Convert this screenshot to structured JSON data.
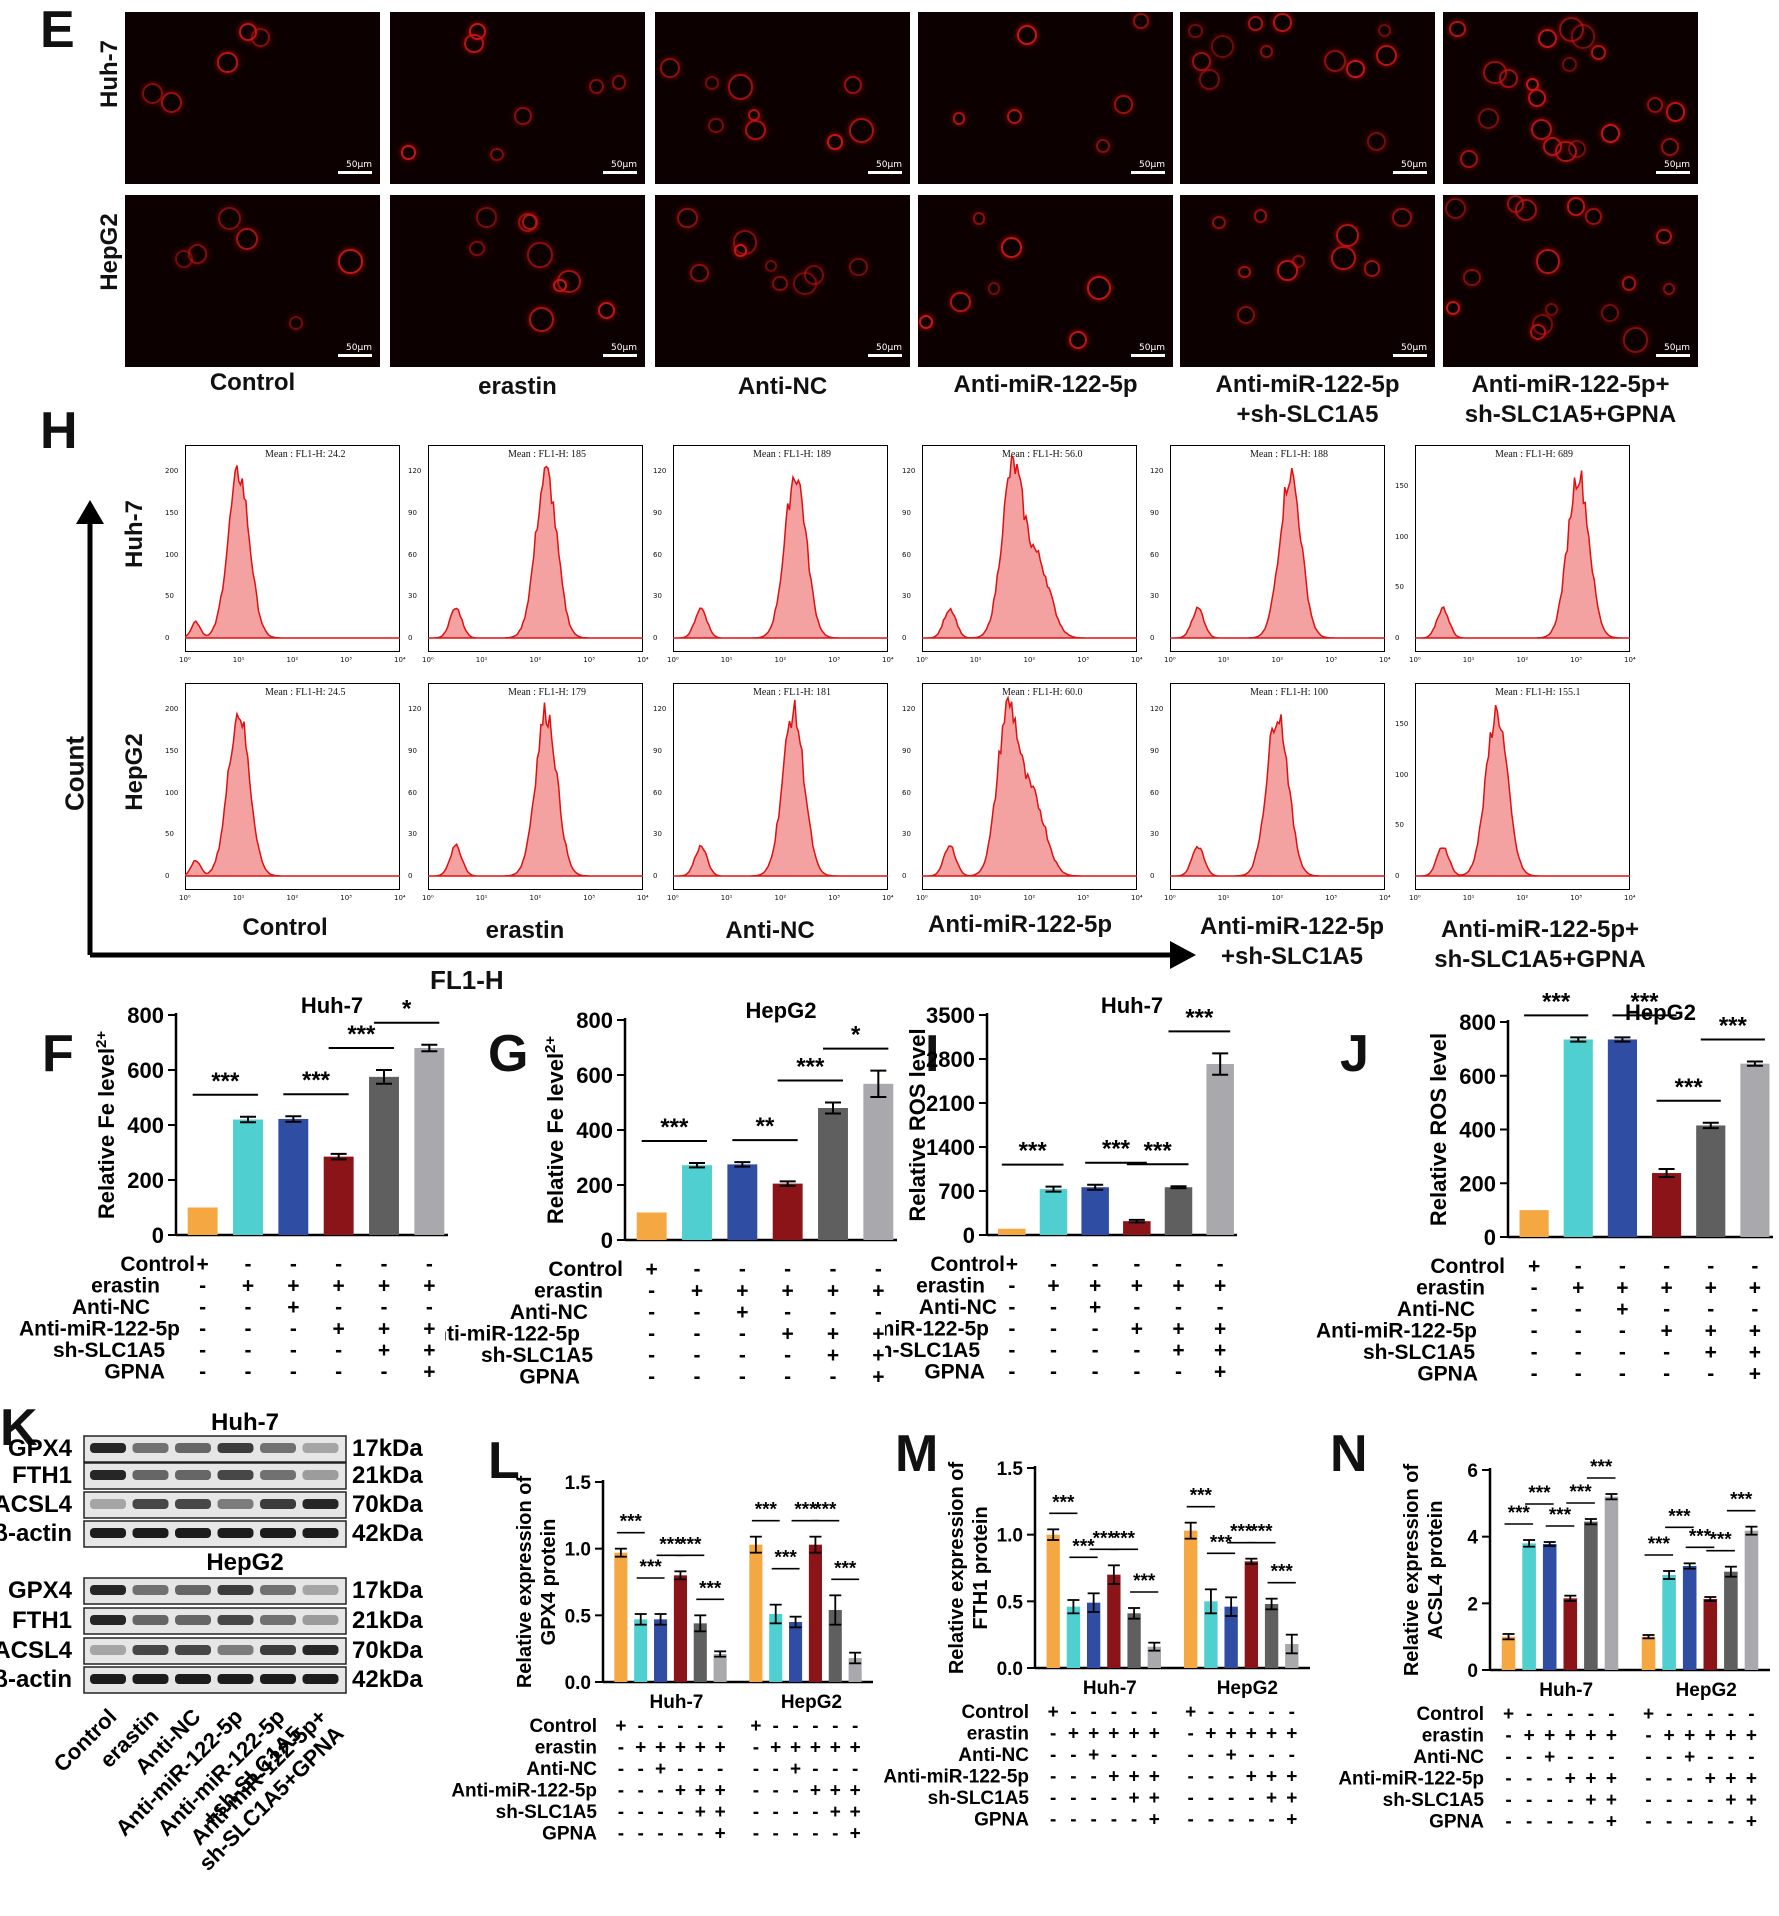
{
  "panels": {
    "E": "E",
    "H": "H",
    "F": "F",
    "G": "G",
    "I": "I",
    "J": "J",
    "K": "K",
    "L": "L",
    "M": "M",
    "N": "N"
  },
  "rows": {
    "huh7": "Huh-7",
    "hepg2": "HepG2"
  },
  "micrographs": {
    "scalebar": "50μm"
  },
  "groups": {
    "g1": "Control",
    "g2": "erastin",
    "g3": "Anti-NC",
    "g4": "Anti-miR-122-5p",
    "g5": "Anti-miR-122-5p\n+sh-SLC1A5",
    "g6": "Anti-miR-122-5p+\nsh-SLC1A5+GPNA"
  },
  "flow": {
    "axis_y": "Count",
    "axis_x": "FL1-H",
    "huh7_means": [
      "Mean : FL1-H: 24.2",
      "Mean : FL1-H: 185",
      "Mean : FL1-H: 189",
      "Mean : FL1-H: 56.0",
      "Mean : FL1-H: 188",
      "Mean : FL1-H: 689"
    ],
    "hepg2_means": [
      "Mean : FL1-H: 24.5",
      "Mean : FL1-H: 179",
      "Mean : FL1-H: 181",
      "Mean : FL1-H: 60.0",
      "Mean : FL1-H: 100",
      "Mean : FL1-H: 155.1"
    ],
    "xticks": [
      "10⁰",
      "10¹",
      "10²",
      "10³",
      "10⁴"
    ]
  },
  "conditions": {
    "names": [
      "Control",
      "erastin",
      "Anti-NC",
      "Anti-miR-122-5p",
      "sh-SLC1A5",
      "GPNA"
    ],
    "matrix": [
      [
        "+",
        "-",
        "-",
        "-",
        "-",
        "-"
      ],
      [
        "-",
        "+",
        "+",
        "+",
        "+",
        "+"
      ],
      [
        "-",
        "-",
        "+",
        "-",
        "-",
        "-"
      ],
      [
        "-",
        "-",
        "-",
        "+",
        "+",
        "+"
      ],
      [
        "-",
        "-",
        "-",
        "-",
        "+",
        "+"
      ],
      [
        "-",
        "-",
        "-",
        "-",
        "-",
        "+"
      ]
    ]
  },
  "western": {
    "huh7": "Huh-7",
    "hepg2": "HepG2",
    "proteins": [
      "GPX4",
      "FTH1",
      "ACSL4",
      "β-actin"
    ],
    "sizes": [
      "17kDa",
      "21kDa",
      "70kDa",
      "42kDa"
    ],
    "lanes": [
      "Control",
      "erastin",
      "Anti-NC",
      "Anti-miR-122-5p",
      "Anti-miR-122-5p\n+sh-SLC1A5",
      "Anti-miR-122-5p+\nsh-SLC1A5+GPNA"
    ]
  },
  "colors": [
    "#f5a742",
    "#4fcfcf",
    "#2f4ea3",
    "#8b1418",
    "#5f5f5f",
    "#a8a8ad"
  ],
  "chart_data": [
    {
      "id": "F",
      "type": "bar",
      "title": "Huh-7",
      "ylabel": "Relative Fe2+ level",
      "ylim": [
        0,
        800
      ],
      "yticks": [
        0,
        200,
        400,
        600,
        800
      ],
      "values": [
        100,
        420,
        422,
        285,
        575,
        680
      ],
      "errors": [
        0,
        10,
        10,
        10,
        25,
        12
      ],
      "sig": [
        {
          "a": 0,
          "b": 1,
          "t": "***"
        },
        {
          "a": 2,
          "b": 3,
          "t": "***"
        },
        {
          "a": 3,
          "b": 4,
          "t": "***"
        },
        {
          "a": 4,
          "b": 5,
          "t": "*"
        }
      ]
    },
    {
      "id": "G",
      "type": "bar",
      "title": "HepG2",
      "ylabel": "Relative Fe2+ level",
      "ylim": [
        0,
        800
      ],
      "yticks": [
        0,
        200,
        400,
        600,
        800
      ],
      "values": [
        100,
        272,
        275,
        205,
        480,
        568
      ],
      "errors": [
        0,
        8,
        8,
        8,
        20,
        48
      ],
      "sig": [
        {
          "a": 0,
          "b": 1,
          "t": "***"
        },
        {
          "a": 2,
          "b": 3,
          "t": "**"
        },
        {
          "a": 3,
          "b": 4,
          "t": "***"
        },
        {
          "a": 4,
          "b": 5,
          "t": "*"
        }
      ]
    },
    {
      "id": "I",
      "type": "bar",
      "title": "Huh-7",
      "ylabel": "Relative ROS level",
      "ylim": [
        0,
        3500
      ],
      "yticks": [
        0,
        700,
        1400,
        2100,
        2800,
        3500
      ],
      "values": [
        100,
        730,
        760,
        220,
        760,
        2720
      ],
      "errors": [
        0,
        40,
        40,
        20,
        15,
        170
      ],
      "sig": [
        {
          "a": 0,
          "b": 1,
          "t": "***"
        },
        {
          "a": 2,
          "b": 3,
          "t": "***"
        },
        {
          "a": 3,
          "b": 4,
          "t": "***"
        },
        {
          "a": 4,
          "b": 5,
          "t": "***"
        }
      ]
    },
    {
      "id": "J",
      "type": "bar",
      "title": "HepG2",
      "ylabel": "Relative ROS level",
      "ylim": [
        0,
        800
      ],
      "yticks": [
        0,
        200,
        400,
        600,
        800
      ],
      "values": [
        100,
        735,
        735,
        238,
        415,
        645
      ],
      "errors": [
        0,
        8,
        8,
        15,
        10,
        8
      ],
      "sig": [
        {
          "a": 0,
          "b": 1,
          "t": "***"
        },
        {
          "a": 2,
          "b": 3,
          "t": "***"
        },
        {
          "a": 3,
          "b": 4,
          "t": "***"
        },
        {
          "a": 4,
          "b": 5,
          "t": "***"
        }
      ]
    },
    {
      "id": "L",
      "type": "bar",
      "ylabel": "Relative expression of GPX4 protein",
      "ylim": [
        0,
        1.5
      ],
      "yticks": [
        "0.0",
        "0.5",
        "1.0",
        "1.5"
      ],
      "groups": [
        "Huh-7",
        "HepG2"
      ],
      "series": [
        [
          0.97,
          0.47,
          0.47,
          0.8,
          0.44,
          0.21
        ],
        [
          1.03,
          0.51,
          0.45,
          1.03,
          0.54,
          0.18
        ]
      ],
      "errors": [
        [
          0.03,
          0.04,
          0.04,
          0.03,
          0.06,
          0.02
        ],
        [
          0.06,
          0.07,
          0.04,
          0.06,
          0.11,
          0.04
        ]
      ]
    },
    {
      "id": "M",
      "type": "bar",
      "ylabel": "Relative expression of FTH1 protein",
      "ylim": [
        0,
        1.5
      ],
      "yticks": [
        "0.0",
        "0.5",
        "1.0",
        "1.5"
      ],
      "groups": [
        "Huh-7",
        "HepG2"
      ],
      "series": [
        [
          1.0,
          0.46,
          0.49,
          0.7,
          0.41,
          0.16
        ],
        [
          1.03,
          0.5,
          0.46,
          0.8,
          0.48,
          0.18
        ]
      ],
      "errors": [
        [
          0.04,
          0.05,
          0.07,
          0.07,
          0.04,
          0.03
        ],
        [
          0.06,
          0.09,
          0.07,
          0.02,
          0.04,
          0.07
        ]
      ]
    },
    {
      "id": "N",
      "type": "bar",
      "ylabel": "Relative expression of ACSL4 protein",
      "ylim": [
        0,
        6
      ],
      "yticks": [
        "0",
        "2",
        "4",
        "6"
      ],
      "groups": [
        "Huh-7",
        "HepG2"
      ],
      "series": [
        [
          1.0,
          3.8,
          3.78,
          2.15,
          4.45,
          5.2
        ],
        [
          1.0,
          2.85,
          3.12,
          2.13,
          2.95,
          4.18
        ]
      ],
      "errors": [
        [
          0.08,
          0.1,
          0.06,
          0.08,
          0.08,
          0.08
        ],
        [
          0.05,
          0.12,
          0.08,
          0.06,
          0.15,
          0.12
        ]
      ]
    }
  ]
}
